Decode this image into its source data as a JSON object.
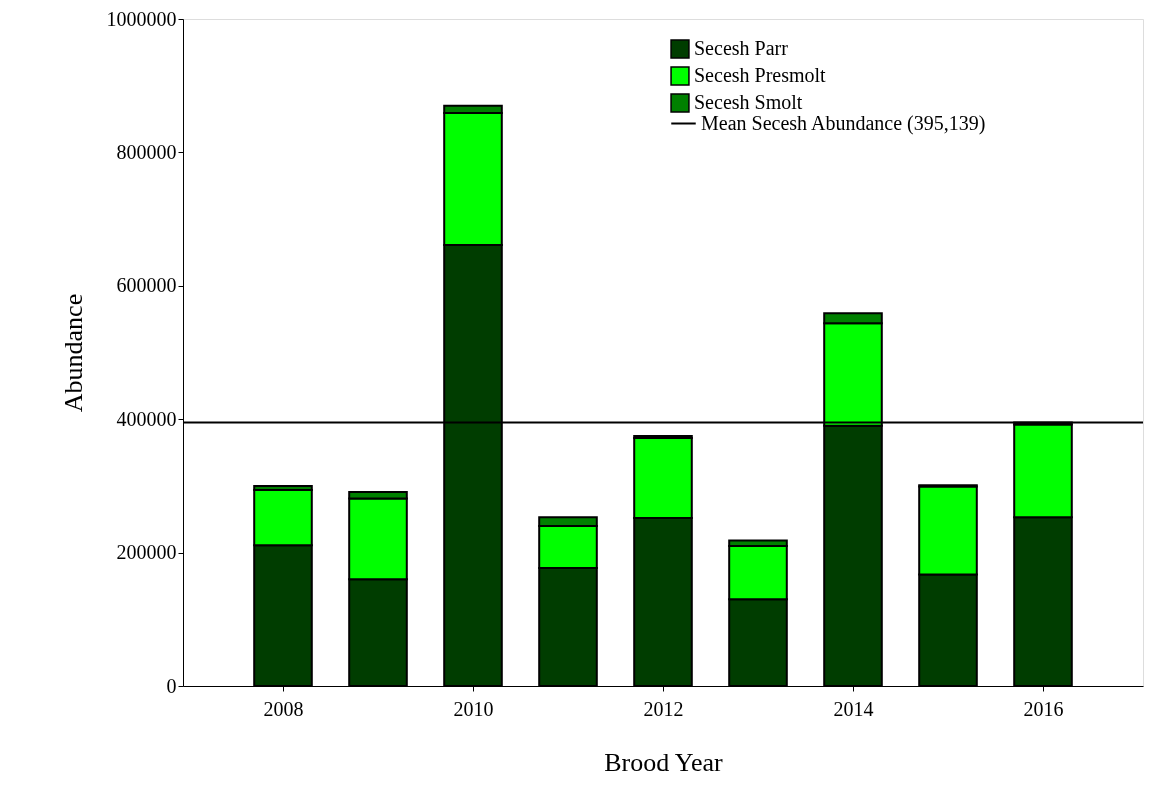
{
  "chart_data": {
    "type": "bar",
    "stacked": true,
    "xlabel": "Brood Year",
    "ylabel": "Abundance",
    "x": [
      2008,
      2009,
      2010,
      2011,
      2012,
      2013,
      2014,
      2015,
      2016
    ],
    "xlim": [
      2007,
      2017
    ],
    "xticks": [
      2008,
      2010,
      2012,
      2014,
      2016
    ],
    "ylim": [
      0,
      1000000
    ],
    "yticks": [
      0,
      200000,
      400000,
      600000,
      800000,
      1000000
    ],
    "series": [
      {
        "name": "Secesh Parr",
        "color": "#003d00",
        "values": [
          211000,
          160000,
          661000,
          177000,
          252000,
          130000,
          390000,
          167000,
          253000
        ]
      },
      {
        "name": "Secesh Presmolt",
        "color": "#00ff00",
        "values": [
          83000,
          121000,
          198000,
          63000,
          120000,
          80000,
          154000,
          132000,
          139000
        ]
      },
      {
        "name": "Secesh Smolt",
        "color": "#008000",
        "values": [
          6000,
          10000,
          11000,
          13000,
          3000,
          8000,
          15000,
          2000,
          3000
        ]
      }
    ],
    "ref_lines": [
      {
        "axis": "y",
        "value": 395139,
        "label": "Mean Secesh Abundance (395,139)",
        "color": "#000000"
      }
    ],
    "legend": "top right",
    "grid": false
  }
}
